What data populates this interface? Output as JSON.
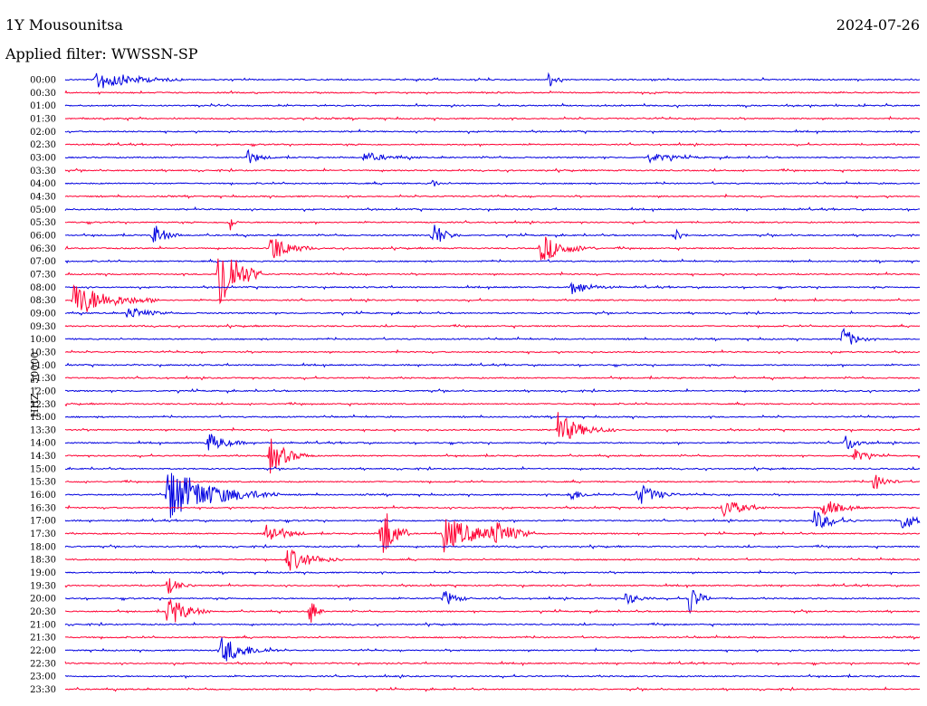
{
  "header": {
    "station": "1Y Mousounitsa",
    "date": "2024-07-26",
    "filter": "Applied filter: WWSSN-SP"
  },
  "colors": {
    "blue": "#0000e0",
    "red": "#ff0033"
  },
  "chart_data": {
    "type": "line",
    "ylabel": "HHZ - 50000",
    "rows": [
      "00:00",
      "00:30",
      "01:00",
      "01:30",
      "02:00",
      "02:30",
      "03:00",
      "03:30",
      "04:00",
      "04:30",
      "05:00",
      "05:30",
      "06:00",
      "06:30",
      "07:00",
      "07:30",
      "08:00",
      "08:30",
      "09:00",
      "09:30",
      "10:00",
      "10:30",
      "11:00",
      "11:30",
      "12:00",
      "12:30",
      "13:00",
      "13:30",
      "14:00",
      "14:30",
      "15:00",
      "15:30",
      "16:00",
      "16:30",
      "17:00",
      "17:30",
      "18:00",
      "18:30",
      "19:00",
      "19:30",
      "20:00",
      "20:30",
      "21:00",
      "21:30",
      "22:00",
      "22:30",
      "23:00",
      "23:30"
    ],
    "row_minutes": 30,
    "series_colors": [
      "blue",
      "red"
    ],
    "events": [
      {
        "row": "00:00",
        "minute": 1.1,
        "amp": 12,
        "dur": 3
      },
      {
        "row": "00:00",
        "minute": 17.0,
        "amp": 10,
        "dur": 0.5
      },
      {
        "row": "03:00",
        "minute": 6.4,
        "amp": 8,
        "dur": 1
      },
      {
        "row": "03:00",
        "minute": 10.5,
        "amp": 5,
        "dur": 2
      },
      {
        "row": "03:00",
        "minute": 20.5,
        "amp": 5,
        "dur": 2
      },
      {
        "row": "04:00",
        "minute": 12.9,
        "amp": 5,
        "dur": 0.4
      },
      {
        "row": "05:30",
        "minute": 5.8,
        "amp": 10,
        "dur": 0.3
      },
      {
        "row": "06:00",
        "minute": 3.1,
        "amp": 14,
        "dur": 1
      },
      {
        "row": "06:00",
        "minute": 12.9,
        "amp": 16,
        "dur": 1
      },
      {
        "row": "06:00",
        "minute": 21.4,
        "amp": 8,
        "dur": 0.5
      },
      {
        "row": "06:30",
        "minute": 7.2,
        "amp": 18,
        "dur": 1.5
      },
      {
        "row": "06:30",
        "minute": 16.7,
        "amp": 16,
        "dur": 2
      },
      {
        "row": "07:30",
        "minute": 5.4,
        "amp": 55,
        "dur": 1.5
      },
      {
        "row": "08:00",
        "minute": 17.8,
        "amp": 8,
        "dur": 1.5
      },
      {
        "row": "08:30",
        "minute": 0.3,
        "amp": 20,
        "dur": 3
      },
      {
        "row": "09:00",
        "minute": 2.2,
        "amp": 8,
        "dur": 1.5
      },
      {
        "row": "10:00",
        "minute": 27.3,
        "amp": 14,
        "dur": 1
      },
      {
        "row": "13:30",
        "minute": 17.3,
        "amp": 18,
        "dur": 2
      },
      {
        "row": "14:00",
        "minute": 5.0,
        "amp": 12,
        "dur": 1.5
      },
      {
        "row": "14:00",
        "minute": 27.4,
        "amp": 10,
        "dur": 1
      },
      {
        "row": "14:30",
        "minute": 7.2,
        "amp": 20,
        "dur": 1.5
      },
      {
        "row": "14:30",
        "minute": 27.7,
        "amp": 8,
        "dur": 1
      },
      {
        "row": "15:30",
        "minute": 28.4,
        "amp": 10,
        "dur": 1
      },
      {
        "row": "16:00",
        "minute": 3.6,
        "amp": 30,
        "dur": 4
      },
      {
        "row": "16:00",
        "minute": 17.7,
        "amp": 8,
        "dur": 1
      },
      {
        "row": "16:00",
        "minute": 20.1,
        "amp": 14,
        "dur": 1.5
      },
      {
        "row": "16:30",
        "minute": 23.1,
        "amp": 12,
        "dur": 1.5
      },
      {
        "row": "16:30",
        "minute": 26.6,
        "amp": 10,
        "dur": 1.5
      },
      {
        "row": "17:00",
        "minute": 26.3,
        "amp": 12,
        "dur": 1.5
      },
      {
        "row": "17:00",
        "minute": 29.4,
        "amp": 12,
        "dur": 1
      },
      {
        "row": "17:30",
        "minute": 7.0,
        "amp": 14,
        "dur": 1.5
      },
      {
        "row": "17:30",
        "minute": 11.1,
        "amp": 40,
        "dur": 1
      },
      {
        "row": "17:30",
        "minute": 13.3,
        "amp": 20,
        "dur": 3
      },
      {
        "row": "17:30",
        "minute": 15.0,
        "amp": 14,
        "dur": 1.5
      },
      {
        "row": "18:30",
        "minute": 7.8,
        "amp": 14,
        "dur": 2
      },
      {
        "row": "19:30",
        "minute": 3.6,
        "amp": 10,
        "dur": 1
      },
      {
        "row": "20:00",
        "minute": 13.3,
        "amp": 10,
        "dur": 1
      },
      {
        "row": "20:00",
        "minute": 19.7,
        "amp": 8,
        "dur": 1
      },
      {
        "row": "20:00",
        "minute": 21.9,
        "amp": 20,
        "dur": 0.8
      },
      {
        "row": "20:30",
        "minute": 3.6,
        "amp": 20,
        "dur": 1.5
      },
      {
        "row": "20:30",
        "minute": 8.6,
        "amp": 18,
        "dur": 0.5
      },
      {
        "row": "22:00",
        "minute": 5.5,
        "amp": 16,
        "dur": 2
      }
    ]
  }
}
